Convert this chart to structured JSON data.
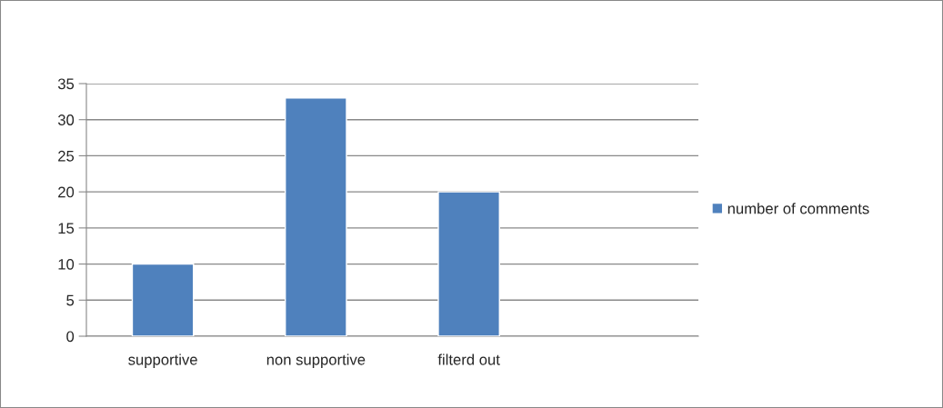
{
  "chart_data": {
    "type": "bar",
    "categories": [
      "supportive",
      "non supportive",
      "filterd out",
      null
    ],
    "series": [
      {
        "name": "number of comments",
        "color": "#4f81bd",
        "values": [
          10,
          33,
          20,
          null
        ]
      }
    ],
    "ylim": [
      0,
      35
    ],
    "yticks": [
      0,
      5,
      10,
      15,
      20,
      25,
      30,
      35
    ],
    "grid": "y",
    "legend": "right"
  }
}
